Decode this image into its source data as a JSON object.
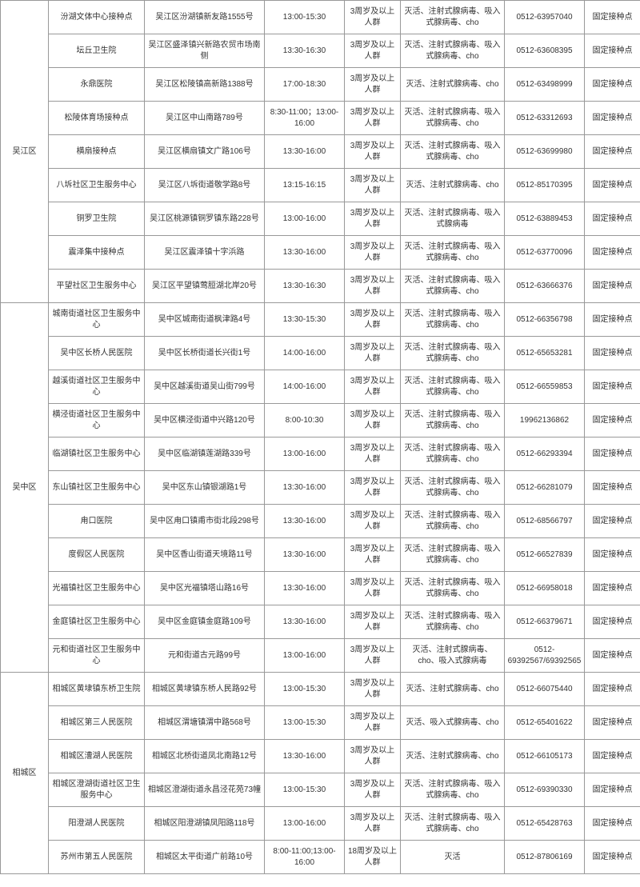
{
  "districts": [
    {
      "name": "吴江区",
      "rows": [
        {
          "site": "汾湖文体中心接种点",
          "addr": "吴江区汾湖镇新友路1555号",
          "time": "13:00-15:30",
          "age": "3周岁及以上人群",
          "vac": "灭活、注射式腺病毒、吸入式腺病毒、cho",
          "phone": "0512-63957040",
          "type": "固定接种点"
        },
        {
          "site": "坛丘卫生院",
          "addr": "吴江区盛泽镇兴新路农贸市场南侧",
          "time": "13:30-16:30",
          "age": "3周岁及以上人群",
          "vac": "灭活、注射式腺病毒、吸入式腺病毒、cho",
          "phone": "0512-63608395",
          "type": "固定接种点"
        },
        {
          "site": "永鼎医院",
          "addr": "吴江区松陵镇高新路1388号",
          "time": "17:00-18:30",
          "age": "3周岁及以上人群",
          "vac": "灭活、注射式腺病毒、cho",
          "phone": "0512-63498999",
          "type": "固定接种点"
        },
        {
          "site": "松陵体育场接种点",
          "addr": "吴江区中山南路789号",
          "time": "8:30-11:00；13:00-16:00",
          "age": "3周岁及以上人群",
          "vac": "灭活、注射式腺病毒、吸入式腺病毒、cho",
          "phone": "0512-63312693",
          "type": "固定接种点"
        },
        {
          "site": "横扇接种点",
          "addr": "吴江区横扇镇文广路106号",
          "time": "13:30-16:00",
          "age": "3周岁及以上人群",
          "vac": "灭活、注射式腺病毒、吸入式腺病毒、cho",
          "phone": "0512-63699980",
          "type": "固定接种点"
        },
        {
          "site": "八坼社区卫生服务中心",
          "addr": "吴江区八坼街道敬学路8号",
          "time": "13:15-16:15",
          "age": "3周岁及以上人群",
          "vac": "灭活、注射式腺病毒、cho",
          "phone": "0512-85170395",
          "type": "固定接种点"
        },
        {
          "site": "铜罗卫生院",
          "addr": "吴江区桃源镇铜罗镇东路228号",
          "time": "13:00-16:00",
          "age": "3周岁及以上人群",
          "vac": "灭活、注射式腺病毒、吸入式腺病毒",
          "phone": "0512-63889453",
          "type": "固定接种点"
        },
        {
          "site": "震泽集中接种点",
          "addr": "吴江区震泽镇十字浜路",
          "time": "13:30-16:00",
          "age": "3周岁及以上人群",
          "vac": "灭活、注射式腺病毒、吸入式腺病毒、cho",
          "phone": "0512-63770096",
          "type": "固定接种点"
        },
        {
          "site": "平望社区卫生服务中心",
          "addr": "吴江区平望镇莺脰湖北岸20号",
          "time": "13:30-16:30",
          "age": "3周岁及以上人群",
          "vac": "灭活、注射式腺病毒、吸入式腺病毒、cho",
          "phone": "0512-63666376",
          "type": "固定接种点"
        }
      ]
    },
    {
      "name": "吴中区",
      "rows": [
        {
          "site": "城南街道社区卫生服务中心",
          "addr": "吴中区城南街道枫津路4号",
          "time": "13:30-15:30",
          "age": "3周岁及以上人群",
          "vac": "灭活、注射式腺病毒、吸入式腺病毒、cho",
          "phone": "0512-66356798",
          "type": "固定接种点"
        },
        {
          "site": "吴中区长桥人民医院",
          "addr": "吴中区长桥街道长兴街1号",
          "time": "14:00-16:00",
          "age": "3周岁及以上人群",
          "vac": "灭活、注射式腺病毒、吸入式腺病毒、cho",
          "phone": "0512-65653281",
          "type": "固定接种点"
        },
        {
          "site": "越溪街道社区卫生服务中心",
          "addr": "吴中区越溪街道吴山街799号",
          "time": "14:00-16:00",
          "age": "3周岁及以上人群",
          "vac": "灭活、注射式腺病毒、吸入式腺病毒、cho",
          "phone": "0512-66559853",
          "type": "固定接种点"
        },
        {
          "site": "横泾街道社区卫生服务中心",
          "addr": "吴中区横泾街道中兴路120号",
          "time": "8:00-10:30",
          "age": "3周岁及以上人群",
          "vac": "灭活、注射式腺病毒、吸入式腺病毒、cho",
          "phone": "19962136862",
          "type": "固定接种点"
        },
        {
          "site": "临湖镇社区卫生服务中心",
          "addr": "吴中区临湖镇莲湖路339号",
          "time": "13:00-16:00",
          "age": "3周岁及以上人群",
          "vac": "灭活、注射式腺病毒、吸入式腺病毒、cho",
          "phone": "0512-66293394",
          "type": "固定接种点"
        },
        {
          "site": "东山镇社区卫生服务中心",
          "addr": "吴中区东山镇银湖路1号",
          "time": "13:30-16:00",
          "age": "3周岁及以上人群",
          "vac": "灭活、注射式腺病毒、吸入式腺病毒、cho",
          "phone": "0512-66281079",
          "type": "固定接种点"
        },
        {
          "site": "甪口医院",
          "addr": "吴中区甪口镇甫市街北段298号",
          "time": "13:30-16:00",
          "age": "3周岁及以上人群",
          "vac": "灭活、注射式腺病毒、吸入式腺病毒、cho",
          "phone": "0512-68566797",
          "type": "固定接种点"
        },
        {
          "site": "度假区人民医院",
          "addr": "吴中区香山街道天境路11号",
          "time": "13:30-16:00",
          "age": "3周岁及以上人群",
          "vac": "灭活、注射式腺病毒、吸入式腺病毒、cho",
          "phone": "0512-66527839",
          "type": "固定接种点"
        },
        {
          "site": "光福镇社区卫生服务中心",
          "addr": "吴中区光福镇塔山路16号",
          "time": "13:30-16:00",
          "age": "3周岁及以上人群",
          "vac": "灭活、注射式腺病毒、吸入式腺病毒、cho",
          "phone": "0512-66958018",
          "type": "固定接种点"
        },
        {
          "site": "金庭镇社区卫生服务中心",
          "addr": "吴中区金庭镇金庭路109号",
          "time": "13:30-16:00",
          "age": "3周岁及以上人群",
          "vac": "灭活、注射式腺病毒、吸入式腺病毒、cho",
          "phone": "0512-66379671",
          "type": "固定接种点"
        },
        {
          "site": "元和街道社区卫生服务中心",
          "addr": "元和街道古元路99号",
          "time": "13:00-16:00",
          "age": "3周岁及以上人群",
          "vac": "灭活、注射式腺病毒、cho、吸入式腺病毒",
          "phone": "0512-69392567/69392565",
          "type": "固定接种点"
        }
      ]
    },
    {
      "name": "相城区",
      "rows": [
        {
          "site": "相城区黄埭镇东桥卫生院",
          "addr": "相城区黄埭镇东桥人民路92号",
          "time": "13:00-15:30",
          "age": "3周岁及以上人群",
          "vac": "灭活、注射式腺病毒、cho",
          "phone": "0512-66075440",
          "type": "固定接种点"
        },
        {
          "site": "相城区第三人民医院",
          "addr": "相城区渭塘镇渭中路568号",
          "time": "13:00-15:30",
          "age": "3周岁及以上人群",
          "vac": "灭活、吸入式腺病毒、cho",
          "phone": "0512-65401622",
          "type": "固定接种点"
        },
        {
          "site": "相城区漕湖人民医院",
          "addr": "相城区北桥街道凤北南路12号",
          "time": "13:30-16:00",
          "age": "3周岁及以上人群",
          "vac": "灭活、注射式腺病毒、cho",
          "phone": "0512-66105173",
          "type": "固定接种点"
        },
        {
          "site": "相城区澄湖街道社区卫生服务中心",
          "addr": "相城区澄湖街道永昌泾花苑73幢",
          "time": "13:00-15:30",
          "age": "3周岁及以上人群",
          "vac": "灭活、注射式腺病毒、吸入式腺病毒、cho",
          "phone": "0512-69390330",
          "type": "固定接种点"
        },
        {
          "site": "阳澄湖人民医院",
          "addr": "相城区阳澄湖镇凤阳路118号",
          "time": "13:00-16:00",
          "age": "3周岁及以上人群",
          "vac": "灭活、注射式腺病毒、吸入式腺病毒、cho",
          "phone": "0512-65428763",
          "type": "固定接种点"
        },
        {
          "site": "苏州市第五人民医院",
          "addr": "相城区太平街道广前路10号",
          "time": "8:00-11:00;13:00-16:00",
          "age": "18周岁及以上人群",
          "vac": "灭活",
          "phone": "0512-87806169",
          "type": "固定接种点"
        }
      ]
    }
  ]
}
